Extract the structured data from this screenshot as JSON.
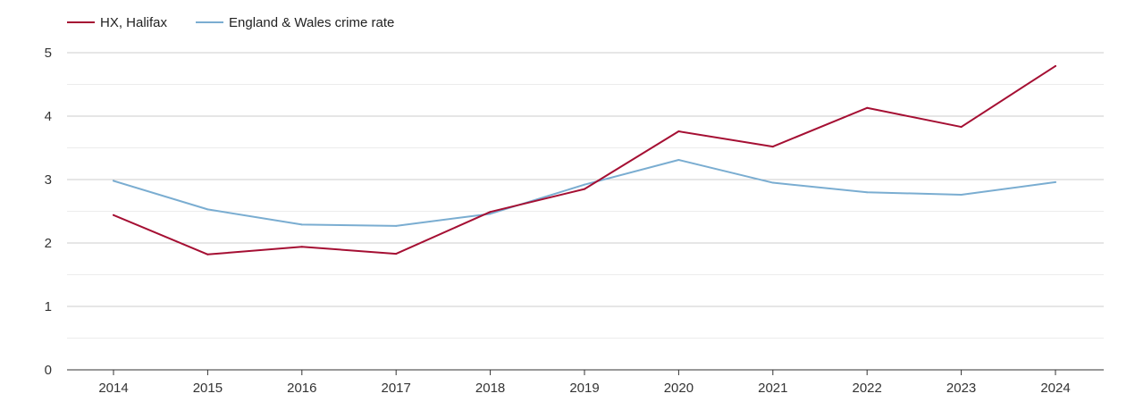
{
  "chart_data": {
    "type": "line",
    "title": "",
    "xlabel": "",
    "ylabel": "",
    "categories": [
      "2014",
      "2015",
      "2016",
      "2017",
      "2018",
      "2019",
      "2020",
      "2021",
      "2022",
      "2023",
      "2024"
    ],
    "ylim": [
      0,
      5
    ],
    "yticks": [
      "0",
      "1",
      "2",
      "3",
      "4",
      "5"
    ],
    "grid": true,
    "legend_position": "top-left",
    "series": [
      {
        "name": "HX, Halifax",
        "color": "#a50f33",
        "values": [
          2.44,
          1.82,
          1.94,
          1.83,
          2.49,
          2.85,
          3.76,
          3.52,
          4.13,
          3.83,
          4.79
        ]
      },
      {
        "name": "England & Wales crime rate",
        "color": "#7aadd1",
        "values": [
          2.98,
          2.53,
          2.29,
          2.27,
          2.46,
          2.92,
          3.31,
          2.95,
          2.8,
          2.76,
          2.96
        ]
      }
    ]
  }
}
